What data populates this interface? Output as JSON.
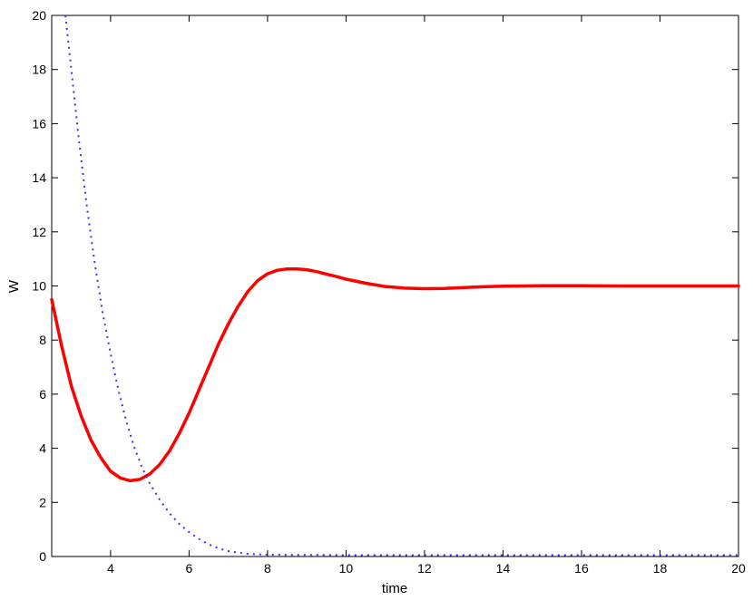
{
  "chart_data": {
    "type": "line",
    "title": "",
    "xlabel": "time",
    "ylabel": "W",
    "xlim": [
      2.5,
      20
    ],
    "ylim": [
      0,
      20
    ],
    "xticks": [
      4,
      6,
      8,
      10,
      12,
      14,
      16,
      18,
      20
    ],
    "yticks": [
      0,
      2,
      4,
      6,
      8,
      10,
      12,
      14,
      16,
      18,
      20
    ],
    "grid": false,
    "legend": "none",
    "series": [
      {
        "style": "solid",
        "color": "#ff0000",
        "x": [
          2.5,
          2.75,
          3.0,
          3.25,
          3.5,
          3.75,
          4.0,
          4.25,
          4.5,
          4.75,
          5.0,
          5.25,
          5.5,
          5.75,
          6.0,
          6.25,
          6.5,
          6.75,
          7.0,
          7.25,
          7.5,
          7.75,
          8.0,
          8.25,
          8.5,
          8.75,
          9.0,
          9.25,
          9.5,
          9.75,
          10.0,
          10.5,
          11.0,
          11.5,
          12.0,
          12.5,
          13.0,
          13.5,
          14.0,
          14.5,
          15.0,
          15.5,
          16.0,
          17.0,
          18.0,
          19.0,
          20.0
        ],
        "y": [
          9.5,
          7.8,
          6.3,
          5.2,
          4.3,
          3.65,
          3.15,
          2.9,
          2.8,
          2.85,
          3.05,
          3.4,
          3.9,
          4.55,
          5.3,
          6.15,
          7.0,
          7.85,
          8.6,
          9.25,
          9.8,
          10.2,
          10.45,
          10.58,
          10.63,
          10.63,
          10.6,
          10.53,
          10.44,
          10.35,
          10.25,
          10.1,
          9.98,
          9.92,
          9.9,
          9.91,
          9.94,
          9.97,
          9.99,
          10.0,
          10.01,
          10.01,
          10.01,
          10.0,
          10.0,
          10.0,
          10.0
        ]
      },
      {
        "style": "dotted",
        "color": "#3333ff",
        "x": [
          2.85,
          3.0,
          3.2,
          3.4,
          3.6,
          3.8,
          4.0,
          4.2,
          4.4,
          4.6,
          4.8,
          5.0,
          5.25,
          5.5,
          5.75,
          6.0,
          6.25,
          6.5,
          6.75,
          7.0,
          7.25,
          7.5,
          7.75,
          8.0,
          8.5,
          9.0,
          10.0,
          11.0,
          12.0,
          13.0,
          14.0,
          15.0,
          16.0,
          17.0,
          18.0,
          19.0,
          20.0
        ],
        "y": [
          20.0,
          18.0,
          15.3,
          12.9,
          10.8,
          9.0,
          7.5,
          6.15,
          5.0,
          4.05,
          3.3,
          2.7,
          2.1,
          1.6,
          1.2,
          0.9,
          0.65,
          0.45,
          0.3,
          0.2,
          0.14,
          0.1,
          0.08,
          0.07,
          0.06,
          0.06,
          0.05,
          0.05,
          0.05,
          0.05,
          0.05,
          0.05,
          0.05,
          0.05,
          0.05,
          0.05,
          0.05
        ]
      }
    ]
  }
}
